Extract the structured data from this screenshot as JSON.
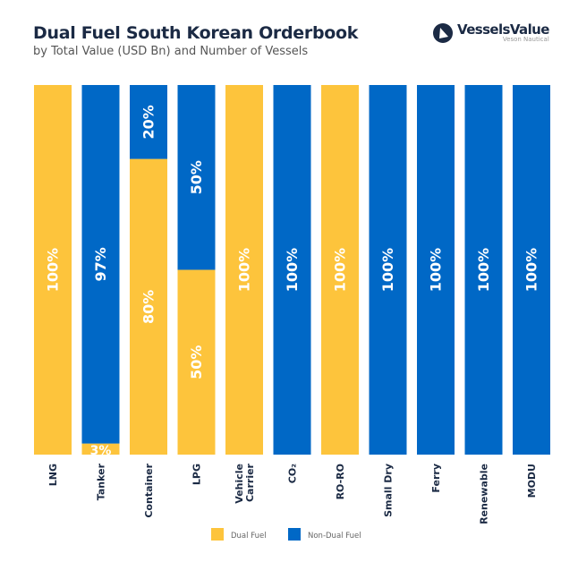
{
  "header": {
    "title": "Dual Fuel South Korean Orderbook",
    "subtitle": "by Total Value (USD Bn) and Number of Vessels"
  },
  "logo": {
    "name": "VesselsValue",
    "tagline": "Veson Nautical"
  },
  "colors": {
    "dual": "#FDC43C",
    "non_dual": "#0068C6",
    "text": "#1b2a44"
  },
  "chart_data": {
    "type": "bar",
    "stacked": true,
    "orientation": "vertical",
    "title": "Dual Fuel South Korean Orderbook",
    "subtitle": "by Total Value (USD Bn) and Number of Vessels",
    "categories": [
      "LNG",
      "Tanker",
      "Container",
      "LPG",
      "Vehicle Carrier",
      "CO₂",
      "RO-RO",
      "Small Dry",
      "Ferry",
      "Renewable",
      "MODU"
    ],
    "series": [
      {
        "name": "Dual Fuel",
        "values": [
          100,
          3,
          80,
          50,
          100,
          0,
          100,
          0,
          0,
          0,
          0
        ],
        "labels": [
          "100%",
          "3%",
          "80%",
          "50%",
          "100%",
          "",
          "100%",
          "",
          "",
          "",
          ""
        ]
      },
      {
        "name": "Non-Dual Fuel",
        "values": [
          0,
          97,
          20,
          50,
          0,
          100,
          0,
          100,
          100,
          100,
          100
        ],
        "labels": [
          "",
          "97%",
          "20%",
          "50%",
          "",
          "100%",
          "",
          "100%",
          "100%",
          "100%",
          "100%"
        ]
      }
    ],
    "ylim": [
      0,
      100
    ],
    "grid": false,
    "legend": "bottom-center"
  }
}
